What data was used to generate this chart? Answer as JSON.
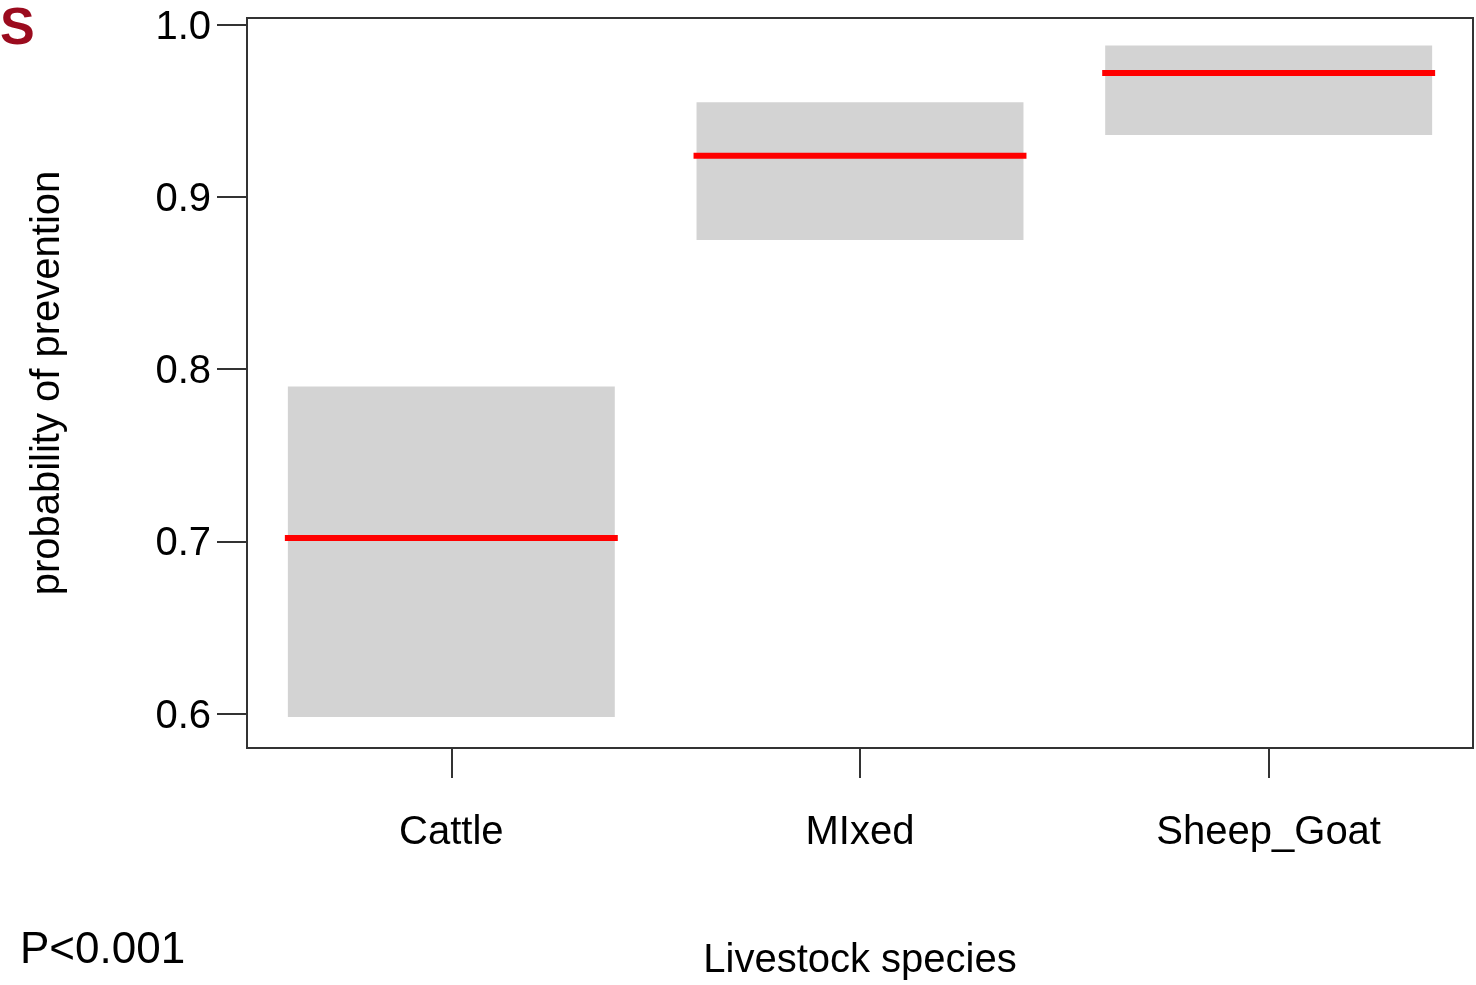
{
  "chart_data": {
    "type": "box",
    "categories": [
      "Cattle",
      "MIxed",
      "Sheep_Goat"
    ],
    "xlabel": "Livestock species",
    "ylabel": "probability of prevention",
    "series": [
      {
        "color": "#d3d3d3",
        "boxes": [
          {
            "low": 0.598,
            "q1": 0.598,
            "median": 0.702,
            "q3": 0.79,
            "high": 0.79
          },
          {
            "low": 0.875,
            "q1": 0.875,
            "median": 0.924,
            "q3": 0.955,
            "high": 0.955
          },
          {
            "low": 0.936,
            "q1": 0.936,
            "median": 0.972,
            "q3": 0.988,
            "high": 0.988
          }
        ]
      }
    ],
    "ylim": [
      0.58,
      1.004
    ],
    "yticks": [
      0.6,
      0.7,
      0.8,
      0.9,
      {
        "value": 1,
        "label": "1.0"
      }
    ],
    "grid": false,
    "annotations": [
      "S",
      "P<0.001"
    ]
  }
}
